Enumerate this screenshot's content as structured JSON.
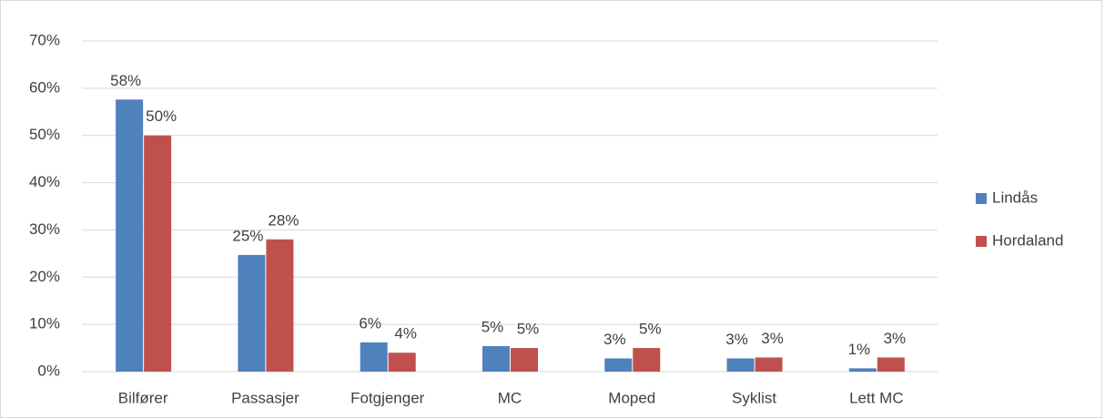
{
  "chart_data": {
    "type": "bar",
    "categories": [
      "Bilfører",
      "Passasjer",
      "Fotgjenger",
      "MC",
      "Moped",
      "Syklist",
      "Lett MC"
    ],
    "series": [
      {
        "name": "Lindås",
        "color": "#4f81bd",
        "values": [
          57.6,
          24.7,
          6.2,
          5.4,
          2.8,
          2.8,
          0.7
        ],
        "value_labels": [
          "58%",
          "25%",
          "6%",
          "5%",
          "3%",
          "3%",
          "1%"
        ]
      },
      {
        "name": "Hordaland",
        "color": "#c0504d",
        "values": [
          50,
          28,
          4,
          5,
          5,
          3,
          3
        ],
        "value_labels": [
          "50%",
          "28%",
          "4%",
          "5%",
          "5%",
          "3%",
          "3%"
        ]
      }
    ],
    "ylim": [
      0,
      70
    ],
    "yticks": [
      {
        "value": 0,
        "label": "0%"
      },
      {
        "value": 10,
        "label": "10%"
      },
      {
        "value": 20,
        "label": "20%"
      },
      {
        "value": 30,
        "label": "30%"
      },
      {
        "value": 40,
        "label": "40%"
      },
      {
        "value": 50,
        "label": "50%"
      },
      {
        "value": 60,
        "label": "60%"
      },
      {
        "value": 70,
        "label": "70%"
      }
    ],
    "grid": true,
    "legend": "right"
  }
}
